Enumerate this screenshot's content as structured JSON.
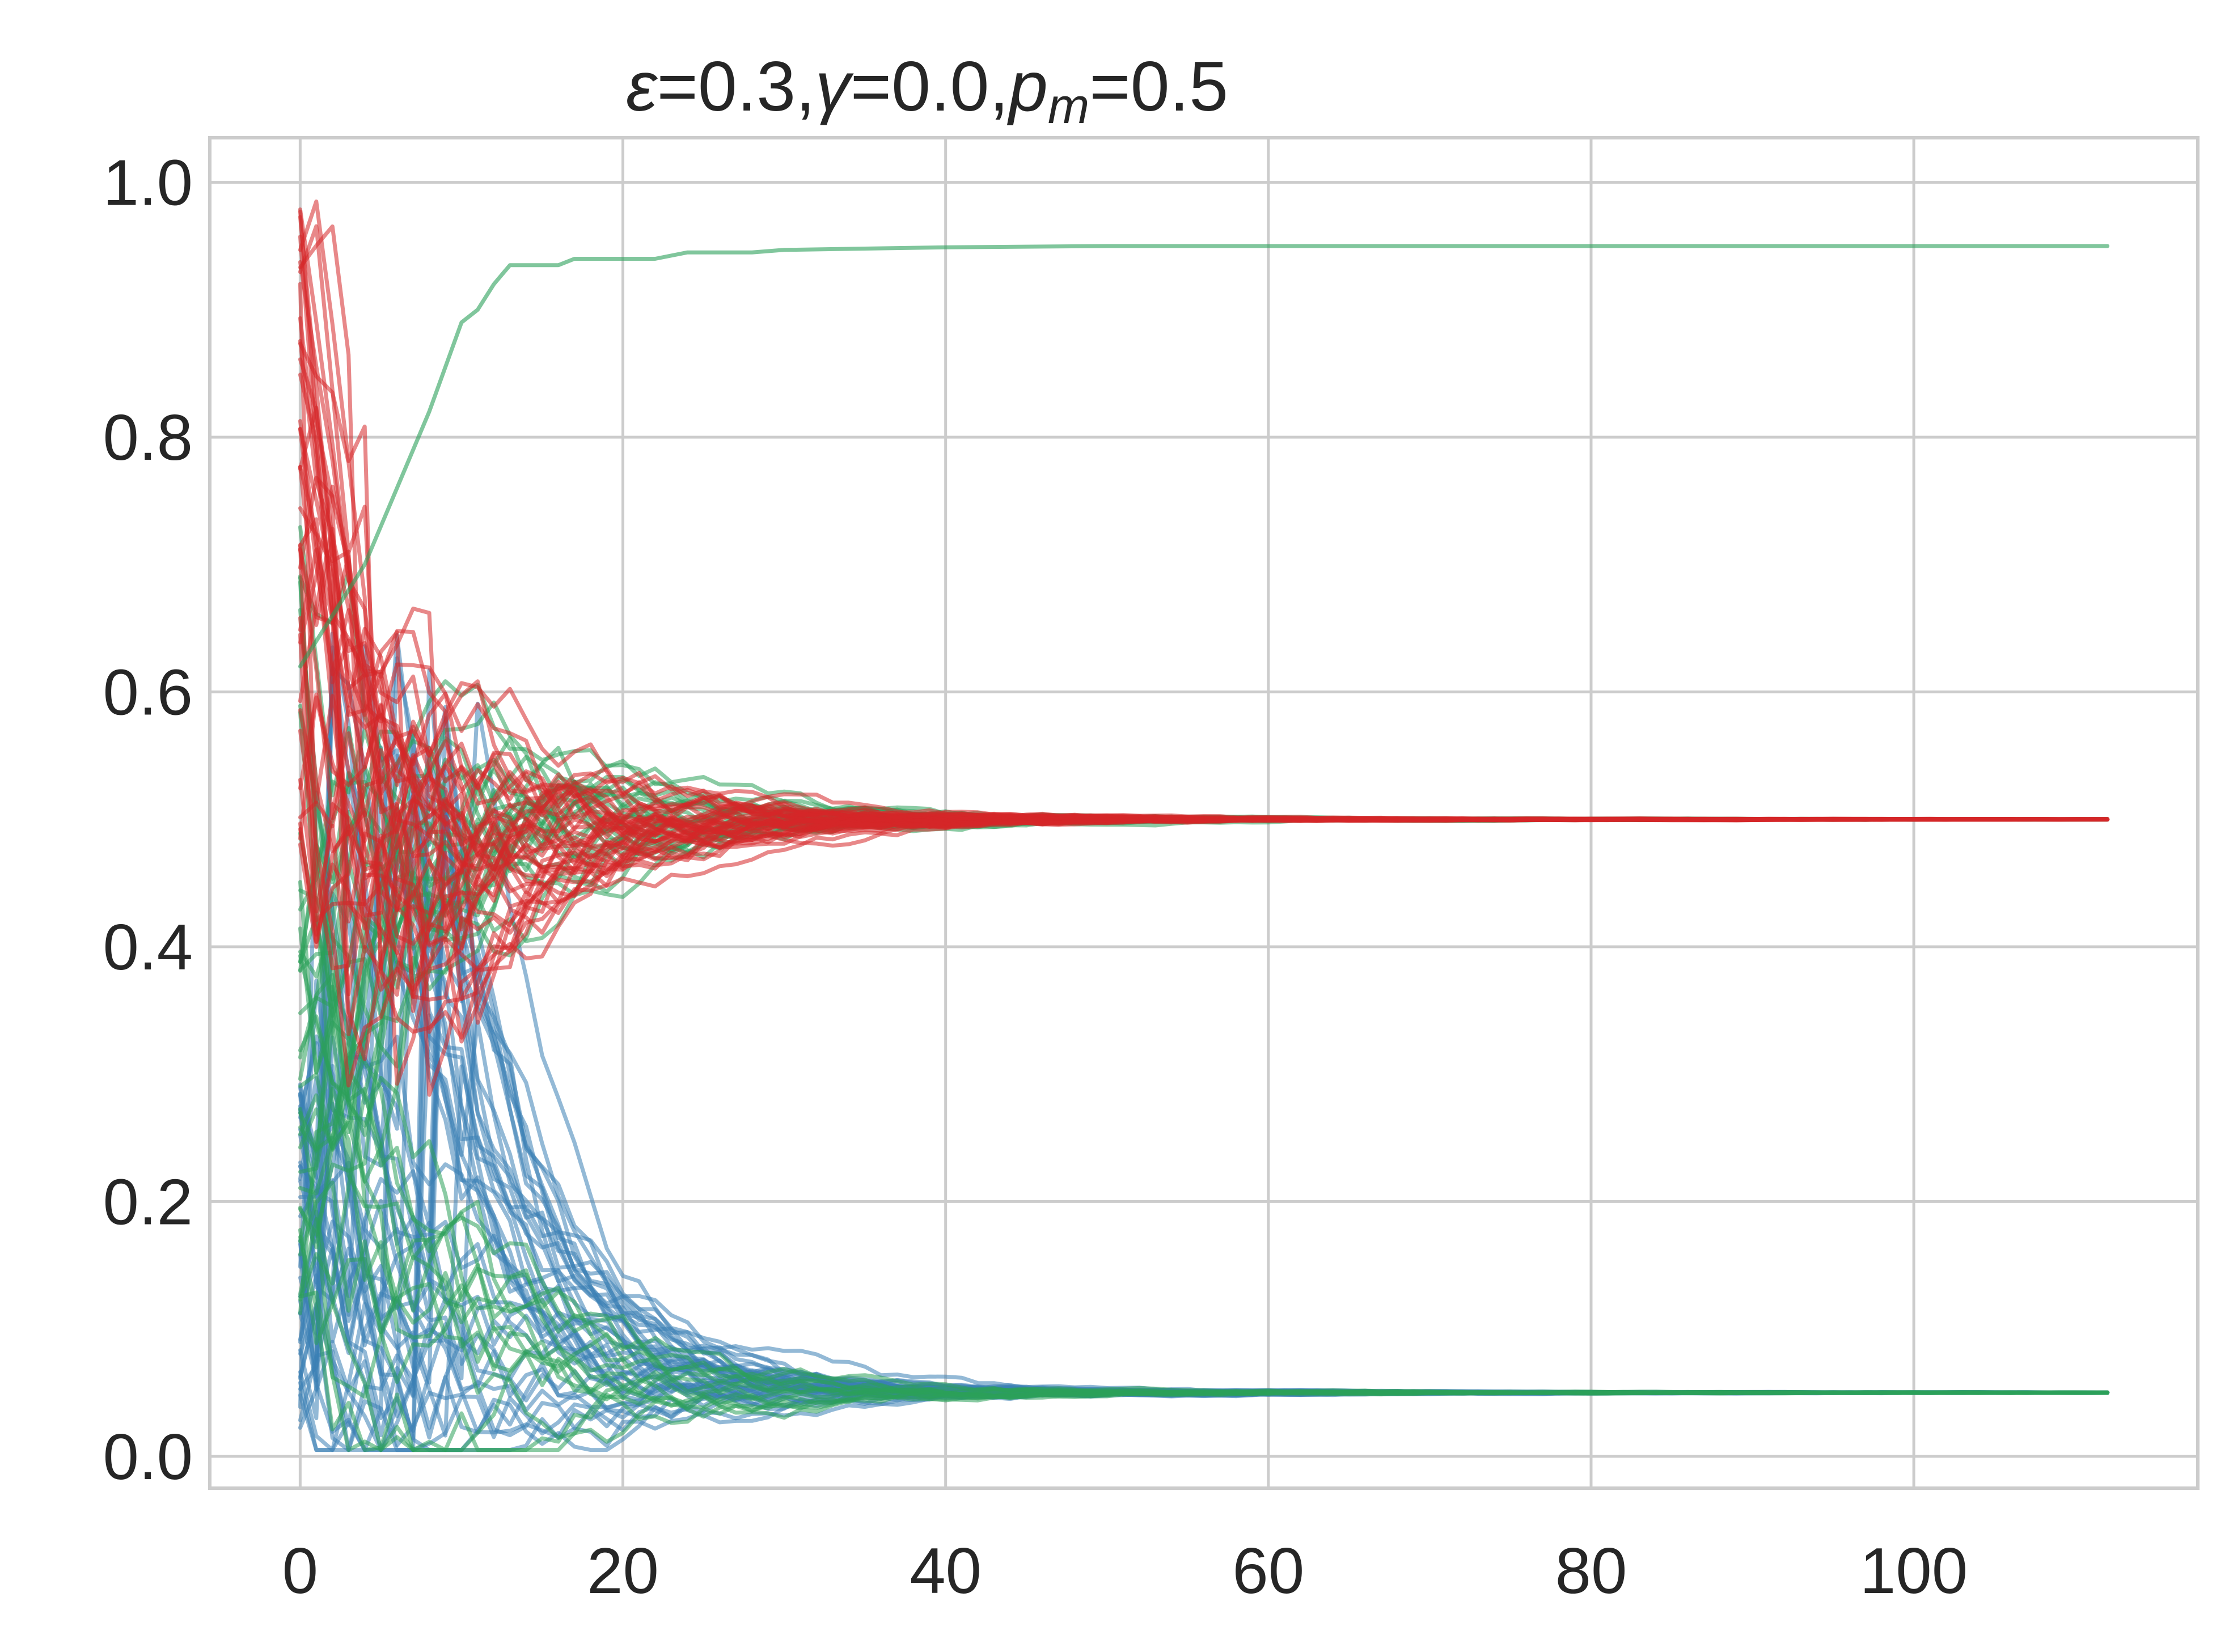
{
  "chart_data": {
    "type": "line",
    "title": {
      "eps_symbol": "ε",
      "eps_value": "=0.3,",
      "gamma_symbol": "γ",
      "gamma_value": "=0.0,",
      "p_symbol": "p",
      "p_subscript": "m",
      "p_value": "=0.5"
    },
    "xlabel": "",
    "ylabel": "",
    "xlim": [
      -5.6,
      117.6
    ],
    "ylim": [
      -0.025,
      1.035
    ],
    "xticks": [
      0,
      20,
      40,
      60,
      80,
      100
    ],
    "xtick_labels": [
      "0",
      "20",
      "40",
      "60",
      "80",
      "100"
    ],
    "yticks": [
      0.0,
      0.2,
      0.4,
      0.6,
      0.8,
      1.0
    ],
    "ytick_labels": [
      "0.0",
      "0.2",
      "0.4",
      "0.6",
      "0.8",
      "1.0"
    ],
    "grid": true,
    "legend": "none",
    "colors": {
      "red": "#d62728",
      "green": "#2ca05a",
      "blue": "#3a7fb5",
      "grid": "#cccccc",
      "text": "#262626"
    },
    "line_opacity": 0.55,
    "series_groups": [
      {
        "color": "red",
        "count": 40,
        "x_start": 0,
        "x_end": 112,
        "initial_range": [
          0.48,
          0.985
        ],
        "converges_to": 0.5,
        "dips_to_min": 0.26
      },
      {
        "color": "green",
        "count": 40,
        "x_start": 0,
        "x_end": 112,
        "initial_range": [
          0.1,
          0.73
        ],
        "converges_to": 0.5,
        "converges_to_low": 0.05
      },
      {
        "color": "blue",
        "count": 40,
        "x_start": 0,
        "x_end": 112,
        "initial_range": [
          0.02,
          0.3
        ],
        "converges_to": 0.05,
        "rises_to_max": 0.65
      }
    ],
    "highlight_series": {
      "color": "green",
      "name": "",
      "x": [
        0,
        2,
        4,
        6,
        8,
        10,
        11,
        12,
        13,
        14,
        15,
        16,
        17,
        18,
        20,
        22,
        24,
        26,
        28,
        30,
        35,
        40,
        50,
        60,
        80,
        100,
        112
      ],
      "y": [
        0.62,
        0.66,
        0.7,
        0.76,
        0.82,
        0.89,
        0.9,
        0.92,
        0.935,
        0.935,
        0.935,
        0.935,
        0.94,
        0.94,
        0.94,
        0.94,
        0.945,
        0.945,
        0.945,
        0.947,
        0.948,
        0.949,
        0.95,
        0.95,
        0.95,
        0.95,
        0.95
      ]
    }
  }
}
